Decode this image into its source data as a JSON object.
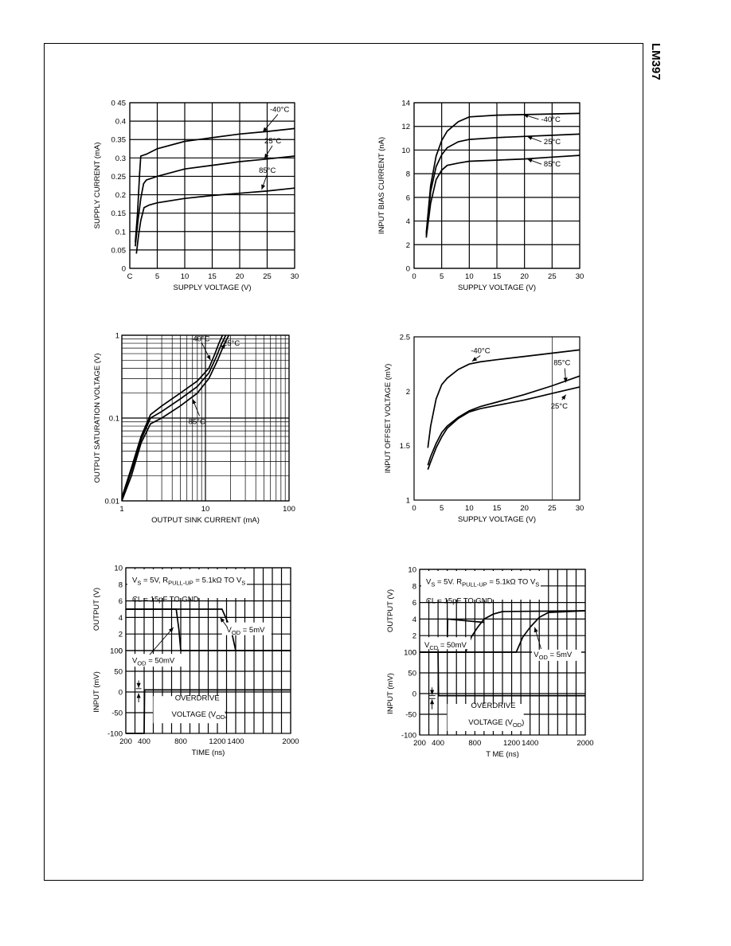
{
  "part_number": "LM397",
  "chart_data": [
    {
      "id": "c1",
      "type": "line",
      "xlabel": "SUPPLY VOLTAGE (V)",
      "ylabel": "SUPPLY CURRENT  (mA)",
      "xlim": [
        0,
        30
      ],
      "ylim": [
        0,
        0.45
      ],
      "xticks": [
        0,
        5,
        10,
        15,
        20,
        25,
        30
      ],
      "xtick_labels": [
        "C",
        "5",
        "10",
        "15",
        "20",
        "25",
        "30"
      ],
      "yticks": [
        0,
        0.05,
        0.1,
        0.15,
        0.2,
        0.25,
        0.3,
        0.35,
        0.4,
        0.45
      ],
      "ytick_labels": [
        "0",
        "0.05",
        "0.1",
        "0.15",
        "0.2",
        "0.25",
        "0.3",
        "0.35",
        "0.4",
        "0 45"
      ],
      "series": [
        {
          "name": "-40°C",
          "x": [
            1,
            1.4,
            1.8,
            2,
            3,
            5,
            10,
            15,
            20,
            25,
            30
          ],
          "y": [
            0.07,
            0.15,
            0.26,
            0.305,
            0.31,
            0.325,
            0.345,
            0.355,
            0.365,
            0.372,
            0.38
          ]
        },
        {
          "name": "25°C",
          "x": [
            1,
            1.5,
            2,
            2.5,
            3,
            5,
            10,
            15,
            20,
            25,
            30
          ],
          "y": [
            0.06,
            0.13,
            0.19,
            0.23,
            0.24,
            0.25,
            0.27,
            0.28,
            0.29,
            0.297,
            0.305
          ]
        },
        {
          "name": "85°C",
          "x": [
            1.2,
            1.6,
            2,
            2.6,
            3.5,
            5,
            10,
            15,
            20,
            25,
            30
          ],
          "y": [
            0.04,
            0.09,
            0.13,
            0.165,
            0.172,
            0.178,
            0.19,
            0.198,
            0.204,
            0.21,
            0.218
          ]
        }
      ],
      "annotations": [
        {
          "text": "-40°C",
          "x": 25.5,
          "y": 0.425
        },
        {
          "text": "25°C",
          "x": 24.5,
          "y": 0.34
        },
        {
          "text": "85°C",
          "x": 23.5,
          "y": 0.26
        }
      ]
    },
    {
      "id": "c2",
      "type": "line",
      "xlabel": "SUPPLY VOLTAGE (V)",
      "ylabel": "INPUT BIAS CURRENT  (nA)",
      "xlim": [
        0,
        30
      ],
      "ylim": [
        0,
        14
      ],
      "xticks": [
        0,
        5,
        10,
        15,
        20,
        25,
        30
      ],
      "xtick_labels": [
        "0",
        "5",
        "10",
        "15",
        "20",
        "25",
        "30"
      ],
      "yticks": [
        0,
        2,
        4,
        6,
        8,
        10,
        12,
        14
      ],
      "ytick_labels": [
        "0",
        "2",
        "4",
        "6",
        "8",
        "10",
        "12",
        "14"
      ],
      "series": [
        {
          "name": "-40°C",
          "x": [
            2.2,
            3,
            4,
            5,
            6,
            8,
            10,
            15,
            20,
            25,
            30
          ],
          "y": [
            3,
            7,
            9.5,
            10.8,
            11.6,
            12.4,
            12.8,
            12.95,
            13,
            13.05,
            13.1
          ]
        },
        {
          "name": "25°C",
          "x": [
            2.2,
            3,
            4,
            5,
            6,
            8,
            10,
            15,
            20,
            25,
            30
          ],
          "y": [
            2.8,
            6.5,
            8.6,
            9.6,
            10.2,
            10.7,
            10.9,
            11.05,
            11.15,
            11.25,
            11.35
          ]
        },
        {
          "name": "85°C",
          "x": [
            2.2,
            3,
            4,
            5,
            6,
            8,
            10,
            15,
            20,
            25,
            30
          ],
          "y": [
            2.6,
            5.5,
            7.5,
            8.3,
            8.7,
            8.9,
            9.05,
            9.15,
            9.25,
            9.4,
            9.55
          ]
        }
      ],
      "annotations": [
        {
          "text": "-40°C",
          "x": 23,
          "y": 12.4
        },
        {
          "text": "25°C",
          "x": 23.5,
          "y": 10.5
        },
        {
          "text": "85°C",
          "x": 23.5,
          "y": 8.6
        }
      ]
    },
    {
      "id": "c3",
      "type": "line",
      "xscale": "log",
      "yscale": "log",
      "xlabel": "OUTPUT SINK CURRENT (mA)",
      "ylabel": "OUTPUT SATURATION VOLTAGE (V)",
      "xlim": [
        1,
        100
      ],
      "ylim": [
        0.01,
        1
      ],
      "xticks": [
        1,
        10,
        100
      ],
      "xtick_labels": [
        "1",
        "10",
        "100"
      ],
      "yticks": [
        0.01,
        0.1,
        1
      ],
      "ytick_labels": [
        "0.01",
        "0.1",
        "1"
      ],
      "series": [
        {
          "name": "-40°C",
          "x": [
            1,
            1.3,
            1.7,
            2.2,
            3,
            5,
            8,
            11,
            13,
            14.5,
            16
          ],
          "y": [
            0.011,
            0.025,
            0.06,
            0.11,
            0.14,
            0.2,
            0.28,
            0.4,
            0.6,
            0.8,
            1
          ]
        },
        {
          "name": "25°C",
          "x": [
            1,
            1.3,
            1.7,
            2.2,
            3,
            5,
            8,
            11,
            13.5,
            15.5,
            17.5
          ],
          "y": [
            0.0105,
            0.023,
            0.055,
            0.1,
            0.12,
            0.17,
            0.24,
            0.35,
            0.55,
            0.78,
            1
          ]
        },
        {
          "name": "85°C",
          "x": [
            1,
            1.3,
            1.7,
            2.2,
            3,
            5,
            8,
            11,
            14,
            16.5,
            19
          ],
          "y": [
            0.01,
            0.02,
            0.05,
            0.085,
            0.1,
            0.14,
            0.2,
            0.3,
            0.5,
            0.75,
            1
          ]
        }
      ],
      "annotations": [
        {
          "text": "-40°C",
          "x": 9,
          "y": 0.85
        },
        {
          "text": "25°C",
          "x": 22,
          "y": 0.75
        },
        {
          "text": "85°C",
          "x": 8.5,
          "y": 0.085
        }
      ]
    },
    {
      "id": "c4",
      "type": "line",
      "xlabel": "SUPPLY VOLTAGE (V)",
      "ylabel": "INPUT OFFSET VOLTAGE  (mV)",
      "xlim": [
        0,
        30
      ],
      "ylim": [
        1,
        2.5
      ],
      "xticks": [
        0,
        5,
        10,
        15,
        20,
        25,
        30
      ],
      "xtick_labels": [
        "0",
        "5",
        "10",
        "15",
        "20",
        "25",
        "30"
      ],
      "yticks": [
        1,
        1.5,
        2,
        2.5
      ],
      "ytick_labels": [
        "1",
        "1.5",
        "2",
        "2.5"
      ],
      "series": [
        {
          "name": "-40°C",
          "x": [
            2.5,
            3,
            4,
            5,
            6,
            8,
            10,
            12,
            15,
            20,
            25,
            30
          ],
          "y": [
            1.48,
            1.68,
            1.93,
            2.06,
            2.12,
            2.2,
            2.25,
            2.27,
            2.29,
            2.32,
            2.35,
            2.38
          ]
        },
        {
          "name": "85°C",
          "x": [
            2.5,
            3,
            4,
            5,
            6,
            8,
            10,
            12,
            15,
            20,
            25,
            30
          ],
          "y": [
            1.32,
            1.4,
            1.52,
            1.62,
            1.68,
            1.76,
            1.82,
            1.86,
            1.9,
            1.97,
            2.05,
            2.14
          ]
        },
        {
          "name": "25°C",
          "x": [
            2.5,
            3,
            4,
            5,
            6,
            8,
            10,
            12,
            15,
            20,
            25,
            30
          ],
          "y": [
            1.28,
            1.35,
            1.48,
            1.58,
            1.66,
            1.75,
            1.81,
            1.84,
            1.87,
            1.92,
            1.98,
            2.04
          ]
        }
      ],
      "annotations": [
        {
          "text": "-40°C",
          "x": 12,
          "y": 2.35
        },
        {
          "text": "85°C",
          "x": 27,
          "y": 2.24
        },
        {
          "text": "25°C",
          "x": 26.5,
          "y": 1.84
        }
      ]
    },
    {
      "id": "c5",
      "type": "line",
      "xlabel": "TIME (ns)",
      "xlim": [
        200,
        2000
      ],
      "xticks": [
        200,
        400,
        800,
        1200,
        1400,
        2000
      ],
      "xtick_labels": [
        "200",
        "400",
        "800",
        "1200",
        "1400",
        "2000"
      ],
      "top": {
        "ylabel": "OUTPUT (V)",
        "ylim": [
          0,
          10
        ],
        "yticks": [
          0,
          2,
          4,
          6,
          8,
          10
        ],
        "ytick_labels": [
          "0",
          "2",
          "4",
          "6",
          "8",
          "10"
        ],
        "series": [
          {
            "name": "VOD = 50mV",
            "x": [
              200,
              750,
              780,
              800,
              2000
            ],
            "y": [
              5,
              5,
              2.5,
              0,
              0
            ]
          },
          {
            "name": "VOD = 5mV",
            "x": [
              200,
              1250,
              1350,
              1400,
              2000
            ],
            "y": [
              5,
              5,
              2.5,
              0,
              0
            ]
          }
        ]
      },
      "bottom": {
        "ylabel": "INPUT (mV)",
        "ylim": [
          -100,
          100
        ],
        "yticks": [
          -100,
          -50,
          0,
          50,
          100
        ],
        "ytick_labels": [
          "-100",
          "-50",
          "0",
          "50",
          "100"
        ],
        "series": [
          {
            "name": "input",
            "x": [
              200,
              400,
              405,
              2000
            ],
            "y": [
              -100,
              -100,
              5,
              5
            ]
          }
        ]
      }
    },
    {
      "id": "c6",
      "type": "line",
      "xlabel": "T ME (ns)",
      "xlim": [
        200,
        2000
      ],
      "xticks": [
        200,
        400,
        800,
        1200,
        1400,
        2000
      ],
      "xtick_labels": [
        "200",
        "400",
        "800",
        "1200",
        "1400",
        "2000"
      ],
      "top": {
        "ylabel": "OUTPUT (V)",
        "ylim": [
          0,
          10
        ],
        "yticks": [
          0,
          2,
          4,
          6,
          8,
          10
        ],
        "ytick_labels": [
          "0",
          "2",
          "4",
          "6",
          "8",
          "10"
        ],
        "series": [
          {
            "name": "VOD = 50mV",
            "x": [
              200,
              700,
              760,
              830,
              900,
              1000,
              1100,
              2000
            ],
            "y": [
              0,
              0,
              1.8,
              3,
              4,
              4.6,
              4.9,
              5
            ]
          },
          {
            "name": "VOD = 5mV",
            "x": [
              200,
              1250,
              1320,
              1400,
              1500,
              1600,
              2000
            ],
            "y": [
              0,
              0,
              1.8,
              3,
              4.2,
              4.8,
              5
            ]
          },
          {
            "name": "step",
            "x": [
              500,
              505,
              900
            ],
            "y": [
              1.2,
              4,
              3.6
            ]
          }
        ]
      },
      "bottom": {
        "ylabel": "INPUT (mV)",
        "ylim": [
          -100,
          100
        ],
        "yticks": [
          -100,
          -50,
          0,
          50,
          100
        ],
        "ytick_labels": [
          "-100",
          "-50",
          "0",
          "50",
          "100"
        ],
        "series": [
          {
            "name": "input",
            "x": [
              200,
              400,
              405,
              2000
            ],
            "y": [
              100,
              100,
              -5,
              -5
            ]
          }
        ]
      }
    }
  ],
  "texts": {
    "c5_cond1": [
      "V",
      "S",
      " = 5V, R",
      "PULL-UP",
      " = 5.1kΩ TO V",
      "S"
    ],
    "c5_cond2": "CL = 15pF TO GND",
    "c5_vod1": [
      "V",
      "OD",
      " = 5mV"
    ],
    "c5_vod2": [
      "V",
      "OD",
      " = 50mV"
    ],
    "c5_overdrive": "OVERDRIVE",
    "c5_voltage": [
      "VOLTAGE (V",
      "OD",
      ")"
    ],
    "c6_cond1": [
      "V",
      "S",
      " = 5V. R",
      "PULL-UP",
      " = 5.1kΩ TO V",
      "S"
    ],
    "c6_cond2": "CL = 15pF TO GND",
    "c6_vod1": [
      "V",
      "CD",
      " = 50mV"
    ],
    "c6_vod2": [
      "V",
      "OD",
      " = 5mV"
    ],
    "c6_overdrive": "OVERDRIVE",
    "c6_voltage": [
      "VOLTAGE (V",
      "OD",
      ")"
    ]
  }
}
